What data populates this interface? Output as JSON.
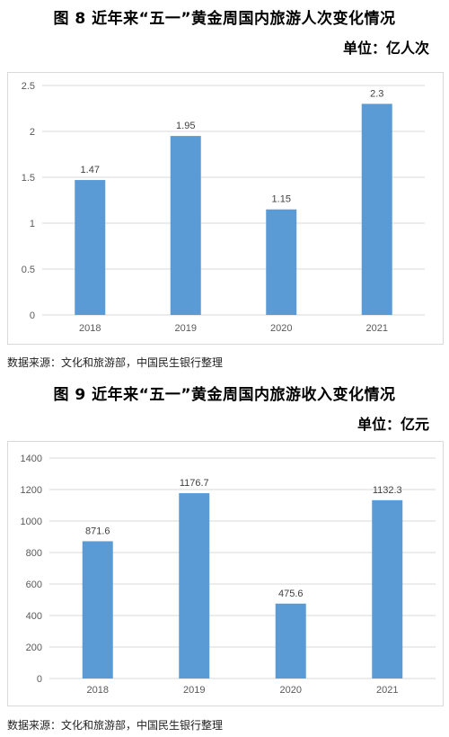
{
  "fig8": {
    "title": "图 8   近年来“五一”黄金周国内旅游人次变化情况",
    "unit": "单位：亿人次",
    "source": "数据来源：文化和旅游部，中国民生银行整理"
  },
  "fig9": {
    "title": "图 9   近年来“五一”黄金周国内旅游收入变化情况",
    "unit": "单位：亿元",
    "source": "数据来源：文化和旅游部，中国民生银行整理"
  },
  "chart_data": [
    {
      "type": "bar",
      "title": "图 8   近年来“五一”黄金周国内旅游人次变化情况",
      "ylabel": "单位：亿人次",
      "categories": [
        "2018",
        "2019",
        "2020",
        "2021"
      ],
      "values": [
        1.47,
        1.95,
        1.15,
        2.3
      ],
      "value_labels": [
        "1.47",
        "1.95",
        "1.15",
        "2.3"
      ],
      "yticks": [
        "0",
        "0.5",
        "1",
        "1.5",
        "2",
        "2.5"
      ],
      "ylim": [
        0,
        2.5
      ],
      "grid": true,
      "color": "#5b9bd5"
    },
    {
      "type": "bar",
      "title": "图 9   近年来“五一”黄金周国内旅游收入变化情况",
      "ylabel": "单位：亿元",
      "categories": [
        "2018",
        "2019",
        "2020",
        "2021"
      ],
      "values": [
        871.6,
        1176.7,
        475.6,
        1132.3
      ],
      "value_labels": [
        "871.6",
        "1176.7",
        "475.6",
        "1132.3"
      ],
      "yticks": [
        "0",
        "200",
        "400",
        "600",
        "800",
        "1000",
        "1200",
        "1400"
      ],
      "ylim": [
        0,
        1400
      ],
      "grid": true,
      "color": "#5b9bd5"
    }
  ]
}
